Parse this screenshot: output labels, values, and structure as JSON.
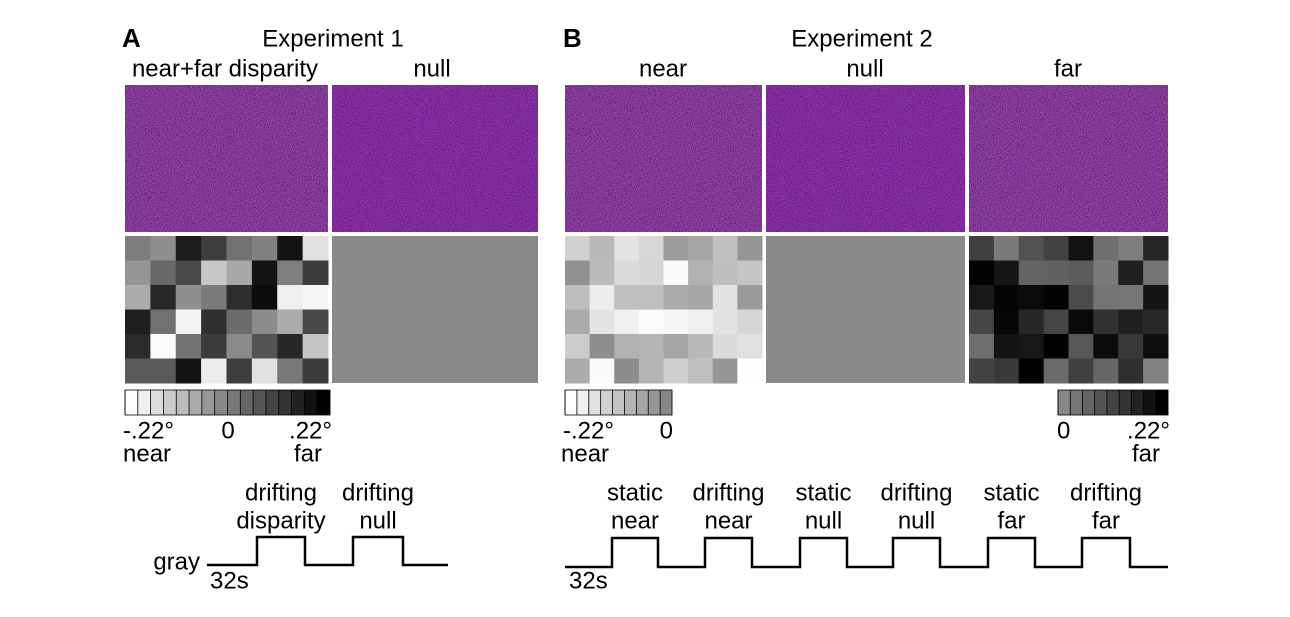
{
  "panels": [
    {
      "letter": "A",
      "title": "Experiment 1",
      "columns": [
        "near+far disparity",
        "null"
      ],
      "colorbars": [
        {
          "labels": [
            "-.22°",
            "0",
            ".22°"
          ],
          "ends": [
            "near",
            "far"
          ]
        }
      ],
      "timeline": {
        "baseline": "gray",
        "duration": "32s",
        "blocks": [
          [
            "drifting",
            "disparity"
          ],
          [
            "drifting",
            "null"
          ]
        ]
      }
    },
    {
      "letter": "B",
      "title": "Experiment 2",
      "columns": [
        "near",
        "null",
        "far"
      ],
      "colorbars": [
        {
          "labels": [
            "-.22°",
            "0"
          ],
          "ends": [
            "near"
          ]
        },
        {
          "labels": [
            "0",
            ".22°"
          ],
          "ends": [
            "far"
          ]
        }
      ],
      "timeline": {
        "duration": "32s",
        "blocks": [
          [
            "static",
            "near"
          ],
          [
            "drifting",
            "near"
          ],
          [
            "static",
            "null"
          ],
          [
            "drifting",
            "null"
          ],
          [
            "static",
            "far"
          ],
          [
            "drifting",
            "far"
          ]
        ]
      }
    }
  ]
}
